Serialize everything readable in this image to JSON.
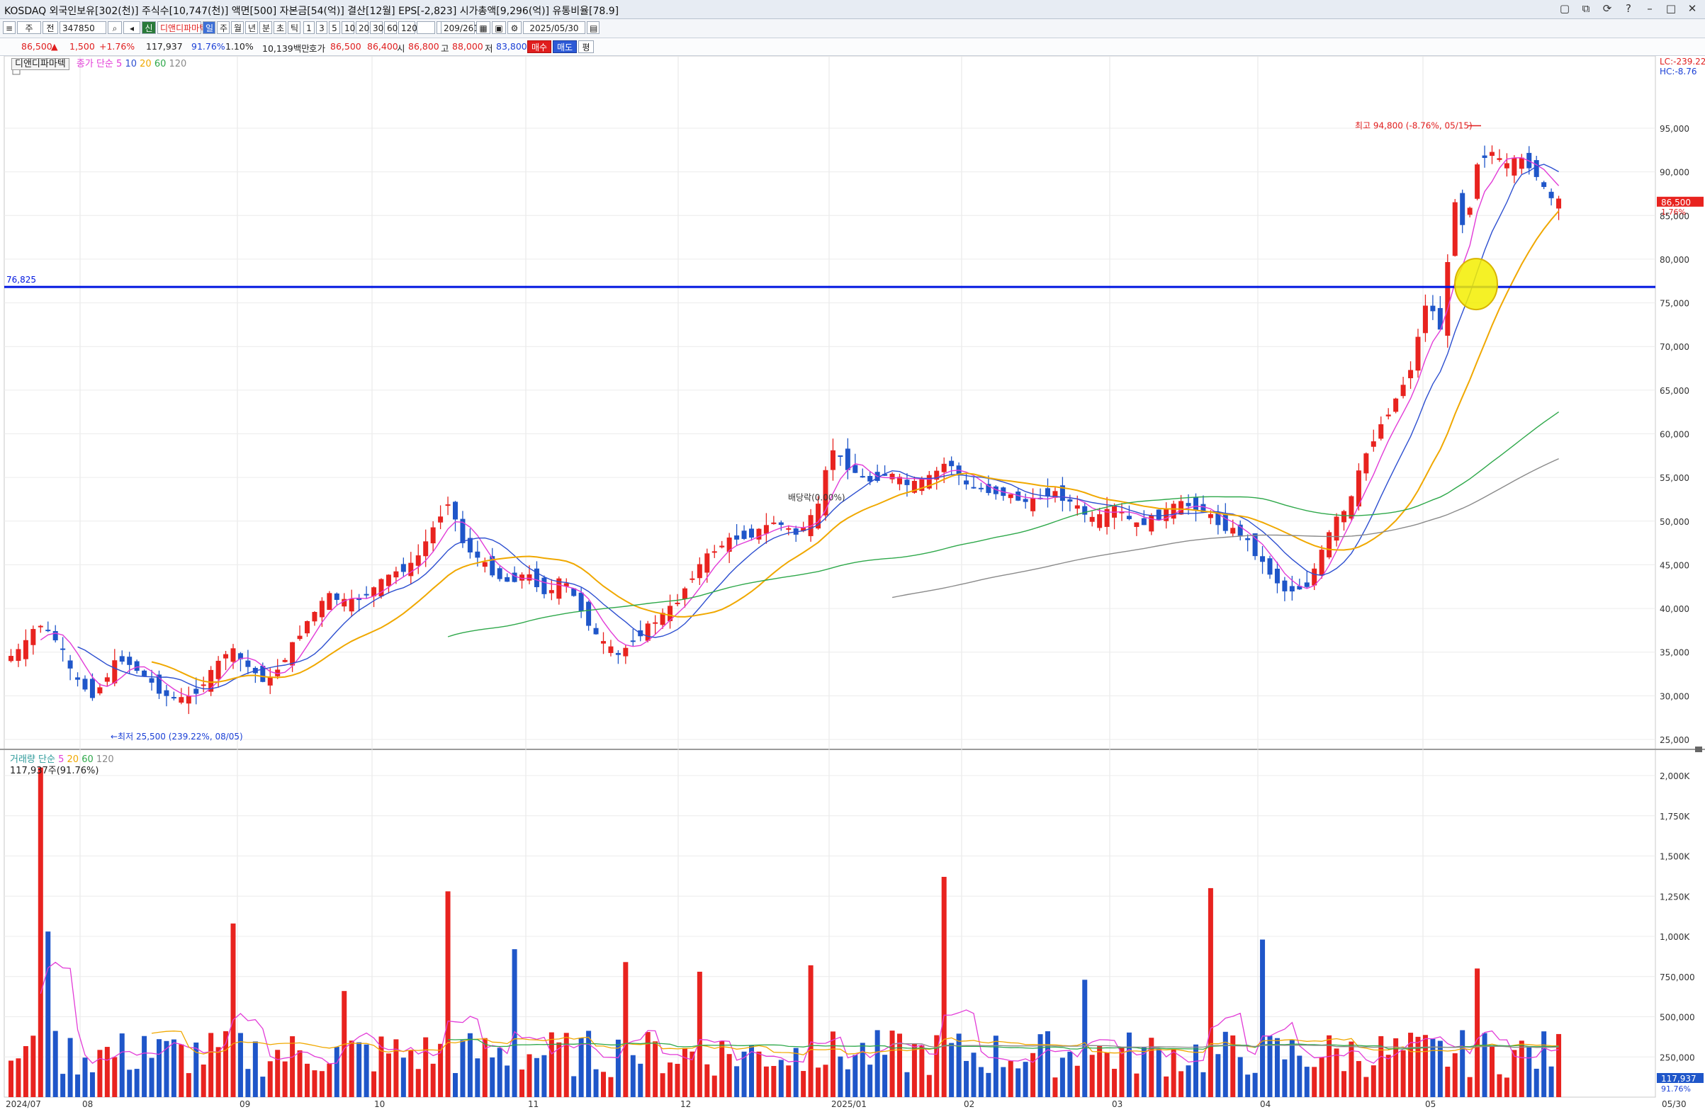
{
  "titlebar": {
    "text": "KOSDAQ 외국인보유[302(천)]  주식수[10,747(천)]  액면[500]  자본금[54(억)]  결산[12월]  EPS[-2,823]  시가총액[9,296(억)]  유통비율[78.9]",
    "buttons": [
      "▢",
      "⧉",
      "⟳",
      "?",
      "–",
      "□",
      "✕"
    ]
  },
  "toolbar": {
    "mode1": "주",
    "mode2": "전",
    "code": "347850",
    "name": "디앤디파마텍",
    "badge": "신",
    "periods": [
      "일",
      "주",
      "월",
      "년",
      "분",
      "초",
      "틱"
    ],
    "intervals": [
      "1",
      "3",
      "5",
      "10",
      "20",
      "30",
      "60",
      "120"
    ],
    "count": "209/261",
    "date": "2025/05/30"
  },
  "quote": {
    "price": "86,500",
    "change_arrow": "▲",
    "change": "1,500",
    "change_pct": "+1.76%",
    "volume": "117,937",
    "volume_ratio": "91.76%",
    "turnover": "1.10%",
    "amount": "10,139백만",
    "bid_label": "호가",
    "bid": "86,500",
    "ask": "86,400",
    "open_label": "시",
    "open": "86,800",
    "high_label": "고",
    "high": "88,000",
    "low_label": "저",
    "low": "83,800",
    "buy": "매수",
    "sell": "매도",
    "avg": "평"
  },
  "price_panel": {
    "tab": "디앤디파마텍",
    "ma_legend": {
      "label": "종가 단순",
      "periods": [
        "5",
        "10",
        "20",
        "60",
        "120"
      ]
    },
    "lc": "LC:-239.22",
    "hc": "HC:-8.76",
    "hline_value": "76,825",
    "current_tag": "86,500",
    "current_tag2": "1.76%",
    "high_annot": "최고 94,800 (-8.76%, 05/15)",
    "low_annot": "최저 25,500 (239.22%, 08/05)",
    "dividend_annot": "배당락(0.00%)",
    "y_ticks": [
      "95,000",
      "90,000",
      "85,000",
      "80,000",
      "75,000",
      "70,000",
      "65,000",
      "60,000",
      "55,000",
      "50,000",
      "45,000",
      "40,000",
      "35,000",
      "30,000",
      "25,000"
    ]
  },
  "volume_panel": {
    "legend_label": "거래량 단순",
    "periods": [
      "5",
      "20",
      "60",
      "120"
    ],
    "current": "117,937주(91.76%)",
    "y_ticks": [
      "2,000K",
      "1,750K",
      "1,500K",
      "1,250K",
      "1,000K",
      "750,000",
      "500,000",
      "250,000"
    ],
    "current_tag": "117,937",
    "current_tag2": "91.76%"
  },
  "x_axis": [
    "2024/07",
    "08",
    "09",
    "10",
    "11",
    "12",
    "2025/01",
    "02",
    "03",
    "04",
    "05",
    "05/30"
  ],
  "colors": {
    "up": "#e8231f",
    "down": "#1f56c9",
    "ma5": "#e23bd7",
    "ma10": "#2d4fd0",
    "ma20": "#f0a800",
    "ma60": "#2ea84a",
    "ma120": "#8a8a8a",
    "hline": "#0016e0"
  }
}
